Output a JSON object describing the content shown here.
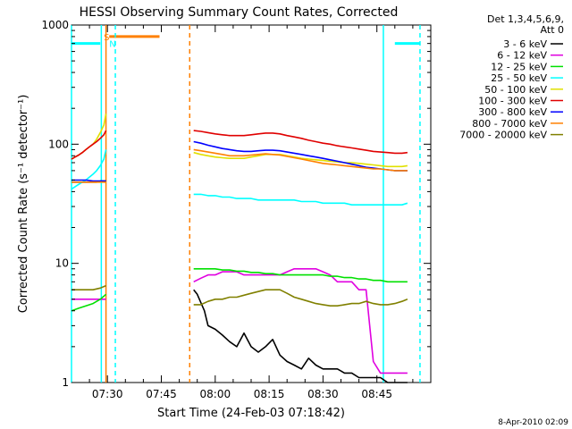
{
  "chart_data": {
    "type": "line",
    "title": "HESSI Observing Summary Count Rates, Corrected",
    "xlabel": "Start Time (24-Feb-03 07:18:42)",
    "ylabel": "Corrected Count Rate (s⁻¹ detector⁻¹)",
    "yscale": "log",
    "ylim": [
      1,
      1000
    ],
    "xlim_minutes": [
      440.0,
      540.0
    ],
    "x_ticks": [
      {
        "value": 450,
        "label": "07:30"
      },
      {
        "value": 465,
        "label": "07:45"
      },
      {
        "value": 480,
        "label": "08:00"
      },
      {
        "value": 495,
        "label": "08:15"
      },
      {
        "value": 510,
        "label": "08:30"
      },
      {
        "value": 525,
        "label": "08:45"
      }
    ],
    "y_ticks": [
      {
        "value": 1,
        "label": "1"
      },
      {
        "value": 10,
        "label": "10"
      },
      {
        "value": 100,
        "label": "100"
      },
      {
        "value": 1000,
        "label": "1000"
      }
    ],
    "grid": false,
    "legend": {
      "placement": "right",
      "header_lines": [
        "Det 1,3,4,5,6,9,",
        "Att 0"
      ]
    },
    "series": [
      {
        "name": "3 - 6 keV",
        "color": "#000000",
        "x": [
          440,
          441,
          442,
          443,
          444,
          445,
          446,
          447,
          448,
          449,
          449.6,
          474,
          475,
          477,
          478,
          480,
          482,
          484,
          486,
          488,
          490,
          492,
          494,
          496,
          498,
          500,
          502,
          504,
          506,
          508,
          510,
          512,
          514,
          516,
          518,
          520,
          522,
          524,
          526,
          528,
          530,
          532,
          533.5
        ],
        "y": [
          48,
          48,
          48,
          48,
          48,
          48,
          48,
          48,
          49,
          49,
          49,
          6,
          5.5,
          4,
          3,
          2.8,
          2.5,
          2.2,
          2,
          2.6,
          2,
          1.8,
          2,
          2.3,
          1.7,
          1.5,
          1.4,
          1.3,
          1.6,
          1.4,
          1.3,
          1.3,
          1.3,
          1.2,
          1.2,
          1.1,
          1.1,
          1.1,
          1.1,
          1,
          1,
          1,
          1
        ]
      },
      {
        "name": "6 - 12 keV",
        "color": "#e000e0",
        "x": [
          440,
          442,
          444,
          446,
          448,
          449.6,
          474,
          476,
          478,
          480,
          482,
          484,
          486,
          488,
          490,
          492,
          494,
          496,
          498,
          500,
          502,
          504,
          506,
          508,
          510,
          512,
          514,
          516,
          518,
          520,
          522,
          524,
          526,
          528,
          530,
          532,
          533.5
        ],
        "y": [
          5,
          5,
          5,
          5,
          5,
          5,
          7,
          7.5,
          8,
          8,
          8.5,
          8.5,
          8.5,
          8,
          8,
          8,
          8,
          8,
          8,
          8.5,
          9,
          9,
          9,
          9,
          8.5,
          8,
          7,
          7,
          7,
          6,
          6,
          1.5,
          1.2,
          1.2,
          1.2,
          1.2,
          1.2
        ]
      },
      {
        "name": "12 - 25 keV",
        "color": "#00e000",
        "x": [
          440,
          442,
          444,
          446,
          448,
          449.6,
          474,
          476,
          478,
          480,
          482,
          484,
          486,
          488,
          490,
          492,
          494,
          496,
          498,
          500,
          502,
          504,
          506,
          508,
          510,
          512,
          514,
          516,
          518,
          520,
          522,
          524,
          526,
          528,
          530,
          532,
          533.5
        ],
        "y": [
          4,
          4.2,
          4.4,
          4.6,
          5,
          5.5,
          9,
          9,
          9,
          9,
          8.8,
          8.8,
          8.6,
          8.6,
          8.4,
          8.4,
          8.2,
          8.2,
          8,
          8,
          8,
          8,
          8,
          8,
          8,
          7.8,
          7.8,
          7.6,
          7.6,
          7.4,
          7.4,
          7.2,
          7.2,
          7,
          7,
          7,
          7
        ]
      },
      {
        "name": "25 - 50 keV",
        "color": "#00ffff",
        "x": [
          440,
          441,
          442,
          443,
          444,
          445,
          446,
          447,
          448,
          449,
          449.6,
          474,
          476,
          478,
          480,
          482,
          484,
          486,
          488,
          490,
          492,
          494,
          496,
          498,
          500,
          502,
          504,
          506,
          508,
          510,
          512,
          514,
          516,
          518,
          520,
          522,
          524,
          526,
          528,
          530,
          532,
          533.5
        ],
        "y": [
          42,
          44,
          46,
          48,
          50,
          53,
          56,
          60,
          66,
          75,
          90,
          38,
          38,
          37,
          37,
          36,
          36,
          35,
          35,
          35,
          34,
          34,
          34,
          34,
          34,
          34,
          33,
          33,
          33,
          32,
          32,
          32,
          32,
          31,
          31,
          31,
          31,
          31,
          31,
          31,
          31,
          32
        ]
      },
      {
        "name": "50 - 100 keV",
        "color": "#e0e000",
        "x": [
          440,
          441,
          442,
          443,
          444,
          445,
          446,
          447,
          448,
          449,
          449.6,
          474,
          476,
          478,
          480,
          482,
          484,
          486,
          488,
          490,
          492,
          494,
          496,
          498,
          500,
          502,
          504,
          506,
          508,
          510,
          512,
          514,
          516,
          518,
          520,
          522,
          524,
          526,
          528,
          530,
          532,
          533.5
        ],
        "y": [
          75,
          78,
          81,
          85,
          90,
          95,
          100,
          110,
          125,
          145,
          180,
          85,
          82,
          80,
          78,
          77,
          76,
          76,
          76,
          78,
          80,
          82,
          82,
          82,
          80,
          78,
          76,
          75,
          74,
          73,
          72,
          71,
          70,
          70,
          69,
          68,
          67,
          66,
          65,
          65,
          65,
          66
        ]
      },
      {
        "name": "100 - 300 keV",
        "color": "#e00000",
        "x": [
          440,
          441,
          442,
          443,
          444,
          445,
          446,
          447,
          448,
          449,
          449.6,
          474,
          476,
          478,
          480,
          482,
          484,
          486,
          488,
          490,
          492,
          494,
          496,
          498,
          500,
          502,
          504,
          506,
          508,
          510,
          512,
          514,
          516,
          518,
          520,
          522,
          524,
          526,
          528,
          530,
          532,
          533.5
        ],
        "y": [
          75,
          78,
          81,
          85,
          90,
          95,
          100,
          105,
          112,
          120,
          130,
          130,
          128,
          125,
          122,
          120,
          118,
          118,
          118,
          120,
          122,
          124,
          124,
          122,
          118,
          115,
          112,
          108,
          105,
          102,
          100,
          97,
          95,
          93,
          91,
          89,
          87,
          86,
          85,
          84,
          84,
          85
        ]
      },
      {
        "name": "300 - 800 keV",
        "color": "#0000ff",
        "x": [
          440,
          442,
          444,
          446,
          448,
          449.6,
          474,
          476,
          478,
          480,
          482,
          484,
          486,
          488,
          490,
          492,
          494,
          496,
          498,
          500,
          502,
          504,
          506,
          508,
          510,
          512,
          514,
          516,
          518,
          520,
          522,
          524,
          526,
          528,
          530,
          532,
          533.5
        ],
        "y": [
          50,
          50,
          50,
          49,
          49,
          49,
          105,
          102,
          98,
          95,
          92,
          90,
          88,
          87,
          87,
          88,
          89,
          89,
          88,
          86,
          84,
          82,
          80,
          78,
          76,
          74,
          72,
          70,
          68,
          66,
          64,
          63,
          62,
          61,
          60,
          60,
          60
        ]
      },
      {
        "name": "800 - 7000 keV",
        "color": "#ff8000",
        "x": [
          440,
          442,
          444,
          446,
          448,
          449.6,
          474,
          476,
          478,
          480,
          482,
          484,
          486,
          488,
          490,
          492,
          494,
          496,
          498,
          500,
          502,
          504,
          506,
          508,
          510,
          512,
          514,
          516,
          518,
          520,
          522,
          524,
          526,
          528,
          530,
          532,
          533.5
        ],
        "y": [
          48,
          48,
          48,
          48,
          48,
          48,
          90,
          88,
          86,
          84,
          82,
          80,
          80,
          80,
          81,
          82,
          83,
          82,
          81,
          79,
          77,
          75,
          73,
          71,
          69,
          68,
          67,
          66,
          65,
          64,
          63,
          62,
          62,
          61,
          60,
          60,
          60
        ]
      },
      {
        "name": "7000 - 20000 keV",
        "color": "#808000",
        "x": [
          440,
          442,
          444,
          446,
          448,
          449.6,
          474,
          476,
          478,
          480,
          482,
          484,
          486,
          488,
          490,
          492,
          494,
          496,
          498,
          500,
          502,
          504,
          506,
          508,
          510,
          512,
          514,
          516,
          518,
          520,
          522,
          524,
          526,
          528,
          530,
          532,
          533.5
        ],
        "y": [
          6,
          6,
          6,
          6,
          6.2,
          6.5,
          4.5,
          4.5,
          4.8,
          5,
          5,
          5.2,
          5.2,
          5.4,
          5.6,
          5.8,
          6,
          6,
          6,
          5.6,
          5.2,
          5,
          4.8,
          4.6,
          4.5,
          4.4,
          4.4,
          4.5,
          4.6,
          4.6,
          4.8,
          4.6,
          4.5,
          4.5,
          4.6,
          4.8,
          5
        ]
      }
    ],
    "annotations": [
      {
        "type": "cyan_bar",
        "x0": 440.0,
        "x1": 448.0,
        "y": 700
      },
      {
        "type": "cyan_bar",
        "x0": 530.0,
        "x1": 537.0,
        "y": 700
      },
      {
        "type": "orange_bar",
        "x0": 450.5,
        "x1": 464.5,
        "y": 800
      },
      {
        "label": "S",
        "color": "#ff8000",
        "x": 449.0,
        "y": 800
      },
      {
        "label": "N",
        "color": "#00ffff",
        "x": 450.5,
        "y": 700
      },
      {
        "type": "vline",
        "x": 440.0,
        "color": "#00ffff",
        "style": "solid"
      },
      {
        "type": "vline",
        "x": 448.3,
        "color": "#00ffff",
        "style": "solid"
      },
      {
        "type": "vline",
        "x": 449.6,
        "color": "#ff8000",
        "style": "solid"
      },
      {
        "type": "vline",
        "x": 452.2,
        "color": "#00ffff",
        "style": "dashed"
      },
      {
        "type": "vline",
        "x": 472.9,
        "color": "#ff8000",
        "style": "dashed"
      },
      {
        "type": "vline",
        "x": 526.8,
        "color": "#00ffff",
        "style": "solid"
      },
      {
        "type": "vline",
        "x": 537.0,
        "color": "#00ffff",
        "style": "dashed"
      }
    ]
  },
  "footer_date": "8-Apr-2010 02:09"
}
